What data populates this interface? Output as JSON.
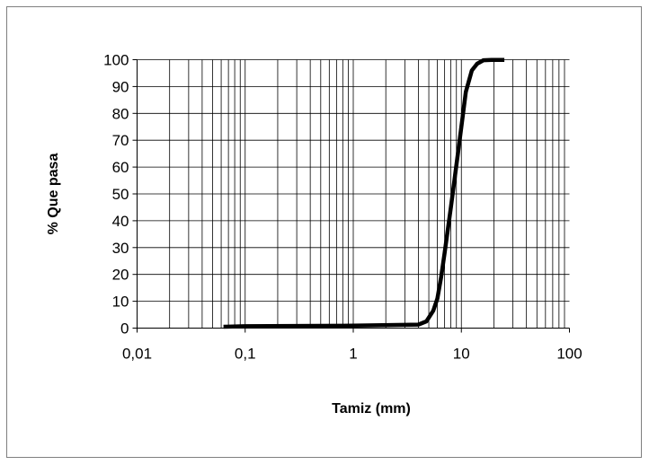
{
  "chart_data": {
    "type": "line",
    "xlabel": "Tamiz (mm)",
    "ylabel": "% Que pasa",
    "x_scale": "log",
    "xlim": [
      0.01,
      100
    ],
    "ylim": [
      0,
      100
    ],
    "x_ticks": [
      {
        "value": 0.01,
        "label": "0,01"
      },
      {
        "value": 0.1,
        "label": "0,1"
      },
      {
        "value": 1,
        "label": "1"
      },
      {
        "value": 10,
        "label": "10"
      },
      {
        "value": 100,
        "label": "100"
      }
    ],
    "y_ticks": [
      {
        "value": 0,
        "label": "0"
      },
      {
        "value": 10,
        "label": "10"
      },
      {
        "value": 20,
        "label": "20"
      },
      {
        "value": 30,
        "label": "30"
      },
      {
        "value": 40,
        "label": "40"
      },
      {
        "value": 50,
        "label": "50"
      },
      {
        "value": 60,
        "label": "60"
      },
      {
        "value": 70,
        "label": "70"
      },
      {
        "value": 80,
        "label": "80"
      },
      {
        "value": 90,
        "label": "90"
      },
      {
        "value": 100,
        "label": "100"
      }
    ],
    "grid": true,
    "legend": "none",
    "series": [
      {
        "color": "#000000",
        "x": [
          0.063,
          0.1,
          1,
          4.0,
          4.75,
          5.5,
          6.0,
          6.5,
          7.0,
          8.0,
          9.5,
          11.0,
          12.5,
          14.0,
          16.0,
          19.0,
          25.0
        ],
        "y": [
          0.5,
          0.7,
          0.9,
          1.3,
          2.5,
          6.5,
          11.0,
          19.0,
          28.0,
          45.0,
          68.0,
          88.0,
          96.0,
          98.5,
          99.8,
          99.9,
          99.9
        ]
      }
    ]
  }
}
